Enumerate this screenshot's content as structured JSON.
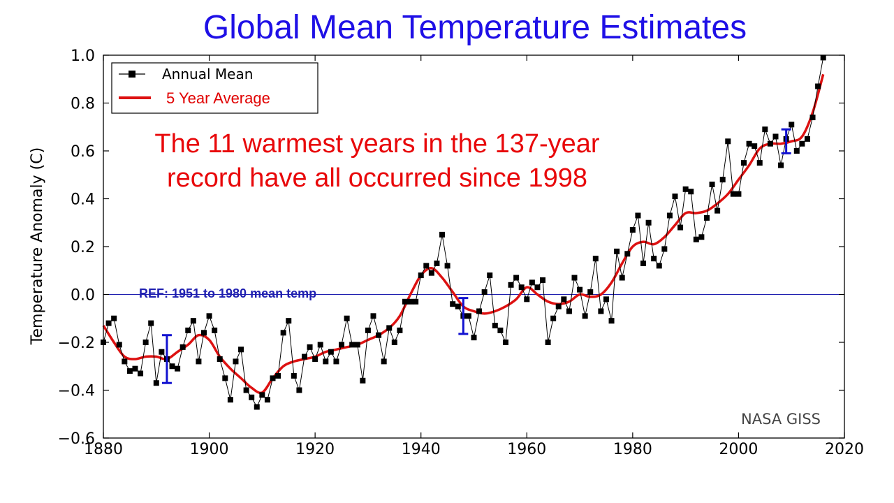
{
  "chart_data": {
    "type": "line",
    "title": "Global Mean Temperature Estimates",
    "xlabel": "",
    "ylabel": "Temperature Anomaly (C)",
    "xlim": [
      1880,
      2020
    ],
    "ylim": [
      -0.6,
      1.0
    ],
    "xticks": [
      1880,
      1900,
      1920,
      1940,
      1960,
      1980,
      2000,
      2020
    ],
    "yticks": [
      -0.6,
      -0.4,
      -0.2,
      0.0,
      0.2,
      0.4,
      0.6,
      0.8,
      1.0
    ],
    "xtick_labels": [
      "1880",
      "1900",
      "1920",
      "1940",
      "1960",
      "1980",
      "2000",
      "2020"
    ],
    "ytick_labels": [
      "−0.6",
      "−0.4",
      "−0.2",
      "0.0",
      "0.2",
      "0.4",
      "0.6",
      "0.8",
      "1.0"
    ],
    "legend": {
      "position": "top-left",
      "annual_label": "Annual Mean",
      "average_label": "5 Year Average"
    },
    "annotation_lines": [
      "The 11 warmest years in the 137-year",
      "record have all occurred since 1998"
    ],
    "reference": {
      "label": "REF: 1951 to 1980 mean temp",
      "value": 0.0
    },
    "source_label": "NASA GISS",
    "colors": {
      "title": "#1f10e6",
      "annual": "#000000",
      "average": "#dd1111",
      "annotation": "#e8080a",
      "reference": "#1f1fb0",
      "error_bar": "#1212d0"
    },
    "series": [
      {
        "name": "Annual Mean",
        "x": [
          1880,
          1881,
          1882,
          1883,
          1884,
          1885,
          1886,
          1887,
          1888,
          1889,
          1890,
          1891,
          1892,
          1893,
          1894,
          1895,
          1896,
          1897,
          1898,
          1899,
          1900,
          1901,
          1902,
          1903,
          1904,
          1905,
          1906,
          1907,
          1908,
          1909,
          1910,
          1911,
          1912,
          1913,
          1914,
          1915,
          1916,
          1917,
          1918,
          1919,
          1920,
          1921,
          1922,
          1923,
          1924,
          1925,
          1926,
          1927,
          1928,
          1929,
          1930,
          1931,
          1932,
          1933,
          1934,
          1935,
          1936,
          1937,
          1938,
          1939,
          1940,
          1941,
          1942,
          1943,
          1944,
          1945,
          1946,
          1947,
          1948,
          1949,
          1950,
          1951,
          1952,
          1953,
          1954,
          1955,
          1956,
          1957,
          1958,
          1959,
          1960,
          1961,
          1962,
          1963,
          1964,
          1965,
          1966,
          1967,
          1968,
          1969,
          1970,
          1971,
          1972,
          1973,
          1974,
          1975,
          1976,
          1977,
          1978,
          1979,
          1980,
          1981,
          1982,
          1983,
          1984,
          1985,
          1986,
          1987,
          1988,
          1989,
          1990,
          1991,
          1992,
          1993,
          1994,
          1995,
          1996,
          1997,
          1998,
          1999,
          2000,
          2001,
          2002,
          2003,
          2004,
          2005,
          2006,
          2007,
          2008,
          2009,
          2010,
          2011,
          2012,
          2013,
          2014,
          2015,
          2016
        ],
        "values": [
          -0.2,
          -0.12,
          -0.1,
          -0.21,
          -0.28,
          -0.32,
          -0.31,
          -0.33,
          -0.2,
          -0.12,
          -0.37,
          -0.24,
          -0.27,
          -0.3,
          -0.31,
          -0.22,
          -0.15,
          -0.11,
          -0.28,
          -0.16,
          -0.09,
          -0.15,
          -0.27,
          -0.35,
          -0.44,
          -0.28,
          -0.23,
          -0.4,
          -0.43,
          -0.47,
          -0.42,
          -0.44,
          -0.35,
          -0.34,
          -0.16,
          -0.11,
          -0.34,
          -0.4,
          -0.26,
          -0.22,
          -0.27,
          -0.21,
          -0.28,
          -0.24,
          -0.28,
          -0.21,
          -0.1,
          -0.21,
          -0.21,
          -0.36,
          -0.15,
          -0.09,
          -0.17,
          -0.28,
          -0.14,
          -0.2,
          -0.15,
          -0.03,
          -0.03,
          -0.03,
          0.08,
          0.12,
          0.09,
          0.13,
          0.25,
          0.12,
          -0.04,
          -0.05,
          -0.09,
          -0.09,
          -0.18,
          -0.07,
          0.01,
          0.08,
          -0.13,
          -0.15,
          -0.2,
          0.04,
          0.07,
          0.03,
          -0.02,
          0.05,
          0.03,
          0.06,
          -0.2,
          -0.1,
          -0.05,
          -0.02,
          -0.07,
          0.07,
          0.02,
          -0.09,
          0.01,
          0.15,
          -0.07,
          -0.02,
          -0.11,
          0.18,
          0.07,
          0.17,
          0.27,
          0.33,
          0.13,
          0.3,
          0.15,
          0.12,
          0.19,
          0.33,
          0.41,
          0.28,
          0.44,
          0.43,
          0.23,
          0.24,
          0.32,
          0.46,
          0.35,
          0.48,
          0.64,
          0.42,
          0.42,
          0.55,
          0.63,
          0.62,
          0.55,
          0.69,
          0.63,
          0.66,
          0.54,
          0.65,
          0.71,
          0.6,
          0.63,
          0.65,
          0.74,
          0.87,
          0.99
        ]
      },
      {
        "name": "5 Year Average",
        "x": [
          1880,
          1882,
          1884,
          1886,
          1888,
          1890,
          1892,
          1894,
          1896,
          1898,
          1900,
          1902,
          1904,
          1906,
          1908,
          1910,
          1912,
          1914,
          1916,
          1918,
          1920,
          1922,
          1924,
          1926,
          1928,
          1930,
          1932,
          1934,
          1936,
          1938,
          1940,
          1942,
          1944,
          1946,
          1948,
          1950,
          1952,
          1954,
          1956,
          1958,
          1960,
          1962,
          1964,
          1966,
          1968,
          1970,
          1972,
          1974,
          1976,
          1978,
          1980,
          1982,
          1984,
          1986,
          1988,
          1990,
          1992,
          1994,
          1996,
          1998,
          2000,
          2002,
          2004,
          2006,
          2008,
          2010,
          2012,
          2014,
          2016
        ],
        "values": [
          -0.13,
          -0.2,
          -0.26,
          -0.27,
          -0.26,
          -0.26,
          -0.27,
          -0.24,
          -0.21,
          -0.17,
          -0.19,
          -0.26,
          -0.31,
          -0.35,
          -0.39,
          -0.41,
          -0.35,
          -0.3,
          -0.28,
          -0.27,
          -0.26,
          -0.24,
          -0.23,
          -0.22,
          -0.21,
          -0.19,
          -0.17,
          -0.14,
          -0.09,
          0.0,
          0.08,
          0.11,
          0.07,
          0.01,
          -0.05,
          -0.07,
          -0.08,
          -0.07,
          -0.05,
          -0.02,
          0.03,
          0.0,
          -0.03,
          -0.04,
          -0.03,
          0.0,
          -0.01,
          0.0,
          0.05,
          0.13,
          0.2,
          0.22,
          0.21,
          0.24,
          0.29,
          0.34,
          0.34,
          0.35,
          0.38,
          0.42,
          0.48,
          0.54,
          0.61,
          0.63,
          0.63,
          0.64,
          0.66,
          0.76,
          0.92
        ]
      }
    ],
    "error_bars": [
      {
        "x": 1892,
        "center": -0.27,
        "half_width": 0.1
      },
      {
        "x": 1948,
        "center": -0.09,
        "half_width": 0.075
      },
      {
        "x": 2009,
        "center": 0.64,
        "half_width": 0.05
      }
    ]
  }
}
